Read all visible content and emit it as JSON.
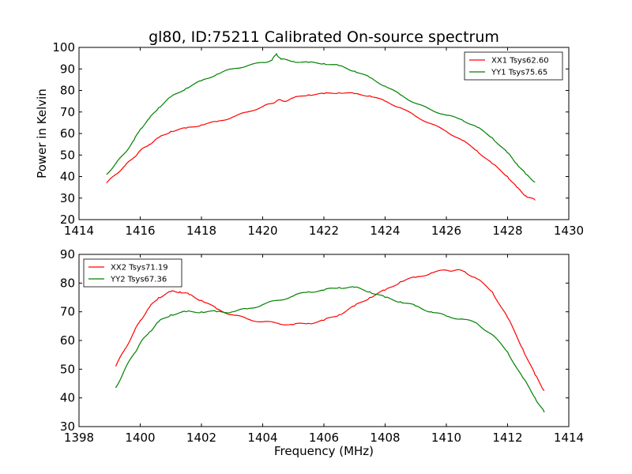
{
  "chart_data": [
    {
      "type": "line",
      "title": "gl80, ID:75211 Calibrated On-source spectrum",
      "xlabel": "",
      "ylabel": "Power in Kelvin",
      "xlim": [
        1414,
        1430
      ],
      "ylim": [
        20,
        100
      ],
      "xticks": [
        1414,
        1416,
        1418,
        1420,
        1422,
        1424,
        1426,
        1428,
        1430
      ],
      "yticks": [
        20,
        30,
        40,
        50,
        60,
        70,
        80,
        90,
        100
      ],
      "legend_position": "top-right",
      "grid": false,
      "series": [
        {
          "name": "XX1 Tsys62.60",
          "color": "#ff0000",
          "x": [
            1414.9,
            1415.2,
            1415.5,
            1415.8,
            1416.0,
            1416.3,
            1416.6,
            1417.0,
            1417.5,
            1418.0,
            1418.5,
            1419.0,
            1419.5,
            1420.0,
            1420.3,
            1420.5,
            1420.7,
            1421.0,
            1421.5,
            1422.0,
            1422.5,
            1423.0,
            1423.5,
            1424.0,
            1424.5,
            1425.0,
            1425.5,
            1426.0,
            1426.5,
            1427.0,
            1427.5,
            1428.0,
            1428.3,
            1428.6,
            1428.9
          ],
          "y": [
            37,
            41,
            45,
            49,
            52,
            55,
            58,
            61,
            62.5,
            64,
            65.5,
            67.5,
            70,
            72.5,
            74,
            75.5,
            75,
            76.5,
            78,
            78.5,
            79,
            78.5,
            77.5,
            75,
            72,
            68,
            64.5,
            61,
            57,
            52,
            46,
            40,
            35,
            31,
            29
          ]
        },
        {
          "name": "YY1 Tsys75.65",
          "color": "#008000",
          "x": [
            1414.9,
            1415.2,
            1415.5,
            1415.8,
            1416.0,
            1416.3,
            1416.6,
            1417.0,
            1417.5,
            1418.0,
            1418.5,
            1419.0,
            1419.5,
            1420.0,
            1420.3,
            1420.45,
            1420.6,
            1421.0,
            1421.5,
            1422.0,
            1422.5,
            1423.0,
            1423.5,
            1424.0,
            1424.5,
            1425.0,
            1425.5,
            1426.0,
            1426.5,
            1427.0,
            1427.5,
            1428.0,
            1428.3,
            1428.6,
            1428.9
          ],
          "y": [
            41,
            46,
            51,
            57,
            62,
            67,
            72,
            77,
            81,
            84.5,
            87.5,
            90,
            91.5,
            93,
            94,
            97,
            94.5,
            93.5,
            93,
            92.5,
            91.5,
            89,
            86,
            82,
            78,
            74,
            71,
            68.5,
            66.5,
            63,
            58,
            51,
            46,
            41,
            37.5
          ]
        }
      ]
    },
    {
      "type": "line",
      "title": "",
      "xlabel": "Frequency (MHz)",
      "ylabel": "",
      "xlim": [
        1398,
        1414
      ],
      "ylim": [
        30,
        90
      ],
      "xticks": [
        1398,
        1400,
        1402,
        1404,
        1406,
        1408,
        1410,
        1412,
        1414
      ],
      "yticks": [
        30,
        40,
        50,
        60,
        70,
        80,
        90
      ],
      "legend_position": "top-left",
      "grid": false,
      "series": [
        {
          "name": "XX2 Tsys71.19",
          "color": "#ff0000",
          "x": [
            1399.2,
            1399.5,
            1399.8,
            1400.0,
            1400.3,
            1400.6,
            1401.0,
            1401.3,
            1401.6,
            1402.0,
            1402.5,
            1403.0,
            1403.5,
            1404.0,
            1404.5,
            1405.0,
            1405.5,
            1406.0,
            1406.5,
            1407.0,
            1407.5,
            1408.0,
            1408.5,
            1409.0,
            1409.5,
            1410.0,
            1410.3,
            1410.6,
            1411.0,
            1411.5,
            1412.0,
            1412.5,
            1412.9,
            1413.2
          ],
          "y": [
            51,
            57,
            63,
            67,
            71.5,
            75,
            77,
            77,
            76,
            74,
            71,
            69,
            67.5,
            66.5,
            66,
            65.5,
            66,
            67,
            69,
            72,
            75,
            77.5,
            80.5,
            82,
            83.5,
            84.5,
            84.5,
            84,
            81.5,
            77,
            68,
            57,
            48,
            42.5
          ]
        },
        {
          "name": "YY2 Tsys67.36",
          "color": "#008000",
          "x": [
            1399.2,
            1399.5,
            1399.8,
            1400.0,
            1400.3,
            1400.6,
            1401.0,
            1401.5,
            1402.0,
            1402.5,
            1403.0,
            1403.5,
            1404.0,
            1404.5,
            1405.0,
            1405.5,
            1406.0,
            1406.5,
            1407.0,
            1407.5,
            1408.0,
            1408.5,
            1409.0,
            1409.5,
            1410.0,
            1410.5,
            1411.0,
            1411.5,
            1412.0,
            1412.5,
            1412.9,
            1413.2
          ],
          "y": [
            43.5,
            50,
            55.5,
            59,
            63,
            66.5,
            69,
            70,
            70,
            70,
            70,
            71,
            72.5,
            74,
            75.5,
            77,
            77.5,
            78.5,
            78.5,
            77,
            75,
            73.5,
            72,
            70,
            68.5,
            67.5,
            66,
            62,
            56,
            47,
            40,
            35
          ]
        }
      ]
    }
  ]
}
